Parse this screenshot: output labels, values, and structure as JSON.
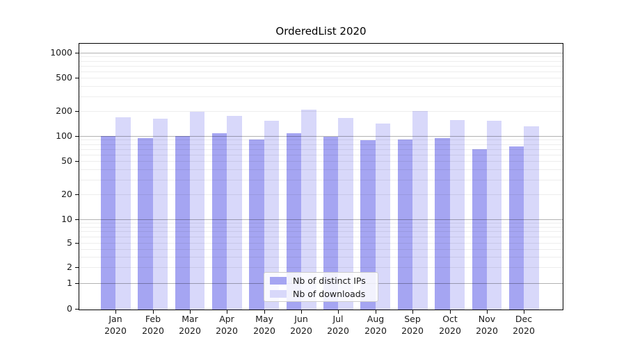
{
  "chart_data": {
    "type": "bar",
    "title": "OrderedList 2020",
    "categories": [
      "Jan",
      "Feb",
      "Mar",
      "Apr",
      "May",
      "Jun",
      "Jul",
      "Aug",
      "Sep",
      "Oct",
      "Nov",
      "Dec"
    ],
    "xtick_year": "2020",
    "series": [
      {
        "name": "Nb of distinct IPs",
        "color": "#a5a5f2",
        "values": [
          100,
          94,
          100,
          108,
          91,
          108,
          98,
          89,
          91,
          94,
          70,
          75
        ]
      },
      {
        "name": "Nb of downloads",
        "color": "#d8d8fa",
        "values": [
          168,
          161,
          197,
          174,
          152,
          207,
          165,
          141,
          198,
          155,
          152,
          131
        ]
      }
    ],
    "yscale": "symlog",
    "yticks": [
      0,
      1,
      2,
      5,
      10,
      20,
      50,
      100,
      200,
      500,
      1000
    ],
    "ylim": [
      0,
      1300
    ],
    "grid": true,
    "legend_position": "lower center"
  }
}
